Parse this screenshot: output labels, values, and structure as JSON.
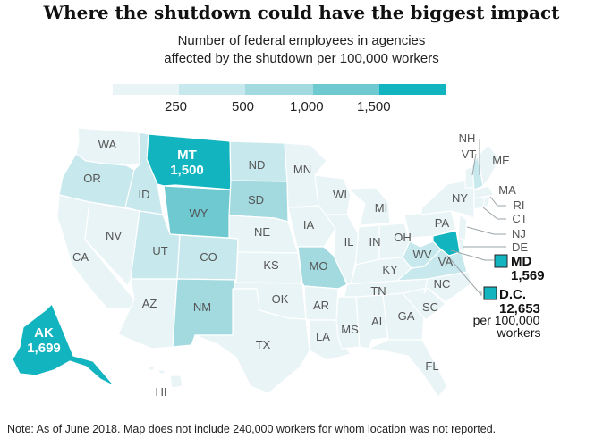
{
  "title": "Where the shutdown could have the biggest impact",
  "subtitle_line1": "Number of federal employees in agencies",
  "subtitle_line2": "affected by the shutdown per 100,000 workers",
  "legend": {
    "ticks": [
      "250",
      "500",
      "1,000",
      "1,500"
    ],
    "colors": [
      "#e9f4f6",
      "#c7e8ec",
      "#a3dae0",
      "#6fc9d1",
      "#12b4bf"
    ]
  },
  "states": {
    "WA": "WA",
    "OR": "OR",
    "CA": "CA",
    "NV": "NV",
    "ID": "ID",
    "MT": "MT",
    "WY": "WY",
    "UT": "UT",
    "AZ": "AZ",
    "CO": "CO",
    "NM": "NM",
    "ND": "ND",
    "SD": "SD",
    "NE": "NE",
    "KS": "KS",
    "OK": "OK",
    "TX": "TX",
    "MN": "MN",
    "IA": "IA",
    "MO": "MO",
    "AR": "AR",
    "LA": "LA",
    "WI": "WI",
    "IL": "IL",
    "MI": "MI",
    "IN": "IN",
    "OH": "OH",
    "KY": "KY",
    "TN": "TN",
    "MS": "MS",
    "AL": "AL",
    "GA": "GA",
    "FL": "FL",
    "SC": "SC",
    "NC": "NC",
    "VA": "VA",
    "WV": "WV",
    "PA": "PA",
    "NY": "NY",
    "VT": "VT",
    "NH": "NH",
    "ME": "ME",
    "MA": "MA",
    "RI": "RI",
    "CT": "CT",
    "NJ": "NJ",
    "DE": "DE",
    "AK": "AK",
    "HI": "HI"
  },
  "callouts": {
    "mt_value": "1,500",
    "ak_value": "1,699",
    "md_label": "MD",
    "md_value": "1,569",
    "dc_label": "D.C.",
    "dc_value": "12,653",
    "dc_unit_line1": "per 100,000",
    "dc_unit_line2": "workers"
  },
  "note": "Note: As of June 2018. Map does not include 240,000 workers for whom location was not reported."
}
